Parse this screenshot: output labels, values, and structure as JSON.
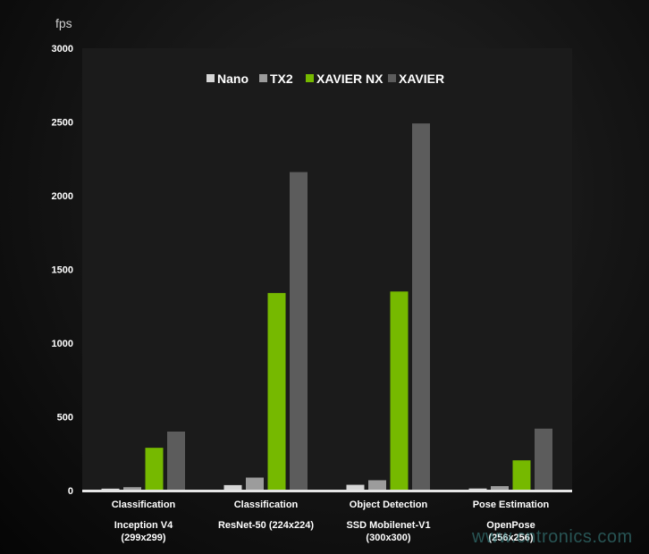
{
  "chart_data": {
    "type": "bar",
    "ylabel": "fps",
    "ylim": [
      0,
      3000
    ],
    "yticks": [
      0,
      500,
      1000,
      1500,
      2000,
      2500,
      3000
    ],
    "legend_position": "top-center",
    "grid": false,
    "categories": [
      {
        "line1": "Classification",
        "line2": "Inception V4",
        "line3": "(299x299)"
      },
      {
        "line1": "Classification",
        "line2": "ResNet-50 (224x224)",
        "line3": ""
      },
      {
        "line1": "Object Detection",
        "line2": "SSD Mobilenet-V1",
        "line3": "(300x300)"
      },
      {
        "line1": "Pose Estimation",
        "line2": "OpenPose",
        "line3": "(256x256)"
      }
    ],
    "series": [
      {
        "name": "Nano",
        "color": "#d6d6d6",
        "values": [
          13,
          37,
          39,
          14
        ]
      },
      {
        "name": "TX2",
        "color": "#9c9c9c",
        "values": [
          23,
          88,
          70,
          30
        ]
      },
      {
        "name": "XAVIER NX",
        "color": "#76b900",
        "values": [
          290,
          1340,
          1350,
          205
        ]
      },
      {
        "name": "XAVIER",
        "color": "#5c5c5c",
        "values": [
          400,
          2160,
          2490,
          420
        ]
      }
    ]
  },
  "colors": {
    "plot_bg": "#1b1b1b",
    "axis_line": "#e6e6e6"
  },
  "watermark": "www.cntronics.com"
}
